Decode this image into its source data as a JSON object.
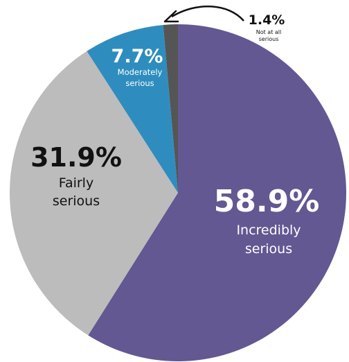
{
  "chart_data": {
    "type": "pie",
    "title": "",
    "slices": [
      {
        "value": 58.9,
        "percent_label": "58.9%",
        "label_lines": [
          "Incredibly",
          "serious"
        ],
        "color": "#635891",
        "text_color": "#ffffff"
      },
      {
        "value": 31.9,
        "percent_label": "31.9%",
        "label_lines": [
          "Fairly",
          "serious"
        ],
        "color": "#bcbcbc",
        "text_color": "#111111"
      },
      {
        "value": 7.7,
        "percent_label": "7.7%",
        "label_lines": [
          "Moderately",
          "serious"
        ],
        "color": "#2e8dbe",
        "text_color": "#ffffff"
      },
      {
        "value": 1.4,
        "percent_label": "1.4%",
        "label_lines": [
          "Not at all",
          "serious"
        ],
        "color": "#555555",
        "text_color": "#111111"
      }
    ],
    "annotation": {
      "type": "curved-arrow",
      "points_to": "Not at all serious"
    }
  }
}
